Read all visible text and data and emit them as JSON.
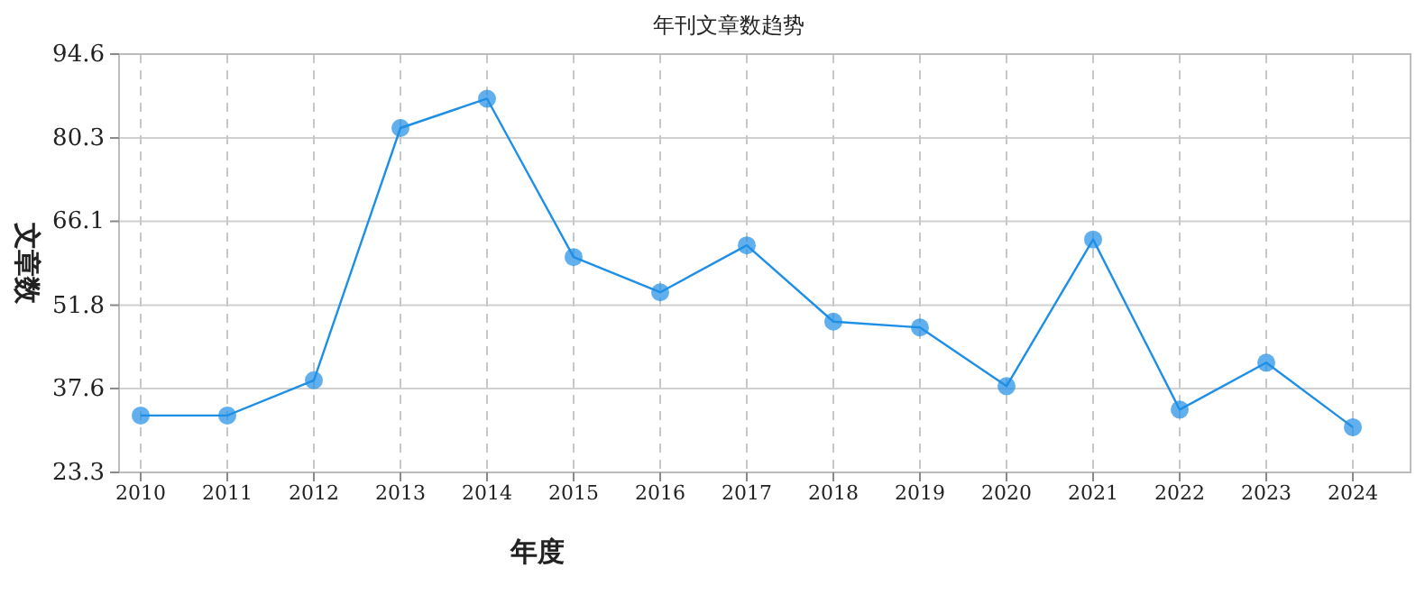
{
  "chart_data": {
    "type": "line",
    "title": "年刊文章数趋势",
    "xlabel": "年度",
    "ylabel": "文章数",
    "categories": [
      "2010",
      "2011",
      "2012",
      "2013",
      "2014",
      "2015",
      "2016",
      "2017",
      "2018",
      "2019",
      "2020",
      "2021",
      "2022",
      "2023",
      "2024"
    ],
    "series": [
      {
        "color": "#1e8fe6",
        "values": [
          33,
          33,
          39,
          82,
          87,
          60,
          54,
          62,
          49,
          48,
          38,
          63,
          34,
          42,
          31
        ]
      }
    ],
    "ylim": [
      23.3,
      94.6
    ],
    "yticks": [
      23.3,
      37.6,
      51.8,
      66.1,
      80.3,
      94.6
    ],
    "grid": true,
    "marker": "circle"
  }
}
